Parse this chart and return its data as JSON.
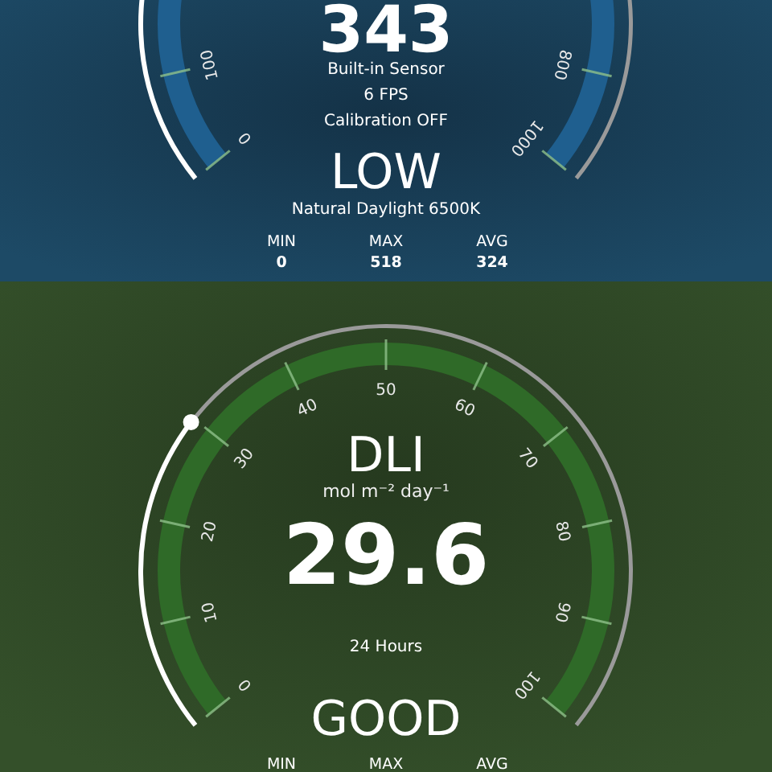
{
  "chart_data": [
    {
      "type": "other",
      "values": [
        343
      ],
      "data_labels": true,
      "color": "#1f5f8f",
      "annotations": [
        "Built-in Sensor",
        "6 FPS",
        "Calibration OFF",
        "LOW",
        "Natural Daylight 6500K",
        "MIN",
        "MAX",
        "AVG",
        "0",
        "518",
        "324",
        "0",
        "100",
        "800",
        "1000"
      ]
    },
    {
      "type": "other",
      "title": "DLI",
      "subtitle": "mol m⁻² day⁻¹",
      "values": [
        29.6
      ],
      "data_labels": true,
      "color": "#2f6a28",
      "annotations": [
        "24 Hours",
        "GOOD",
        "MIN",
        "MAX",
        "AVG",
        "0",
        "10",
        "20",
        "30",
        "40",
        "50",
        "60",
        "70",
        "80",
        "90",
        "100"
      ]
    }
  ]
}
